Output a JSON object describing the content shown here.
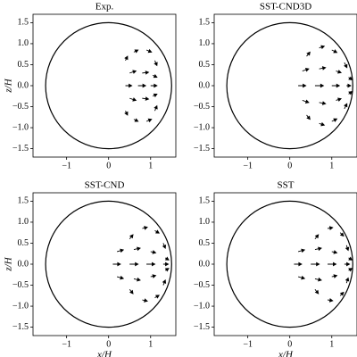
{
  "chart_data": [
    {
      "type": "quiver",
      "title": "Exp.",
      "ylabel": "z/H",
      "xlim": [
        -1.8,
        1.6
      ],
      "ylim": [
        -1.7,
        1.7
      ],
      "circle_radius": 1.5,
      "xticks": [
        {
          "value": -1,
          "label": "−1"
        },
        0,
        1
      ],
      "yticks": [
        1.5,
        {
          "value": 1,
          "label": "1.0"
        },
        0.5,
        {
          "value": 0,
          "label": "0.0"
        },
        {
          "value": -0.5,
          "label": "−0.5"
        },
        {
          "value": -1,
          "label": "−1.0"
        },
        {
          "value": -1.5,
          "label": "−1.5"
        }
      ],
      "color": "#000000",
      "x": [
        0.4,
        0.6,
        0.9,
        1.1,
        0.5,
        0.8,
        1.05,
        0.4,
        0.7,
        1.0,
        0.5,
        0.8,
        1.05,
        0.4,
        0.6,
        0.9,
        1.1
      ],
      "y": [
        0.6,
        0.8,
        0.85,
        0.6,
        0.3,
        0.3,
        0.25,
        0,
        0,
        0,
        -0.3,
        -0.3,
        -0.25,
        -0.6,
        -0.8,
        -0.85,
        -0.6
      ],
      "u": [
        0.05,
        0.1,
        0.12,
        0.05,
        0.15,
        0.15,
        0.1,
        0.15,
        0.18,
        0.15,
        0.15,
        0.15,
        0.1,
        0.05,
        0.1,
        0.12,
        0.05
      ],
      "v": [
        0.1,
        0.05,
        -0.05,
        -0.12,
        0.05,
        0.02,
        -0.05,
        0,
        0,
        0,
        -0.05,
        -0.02,
        0.05,
        -0.1,
        -0.05,
        0.05,
        0.12
      ]
    },
    {
      "type": "quiver",
      "title": "SST-CND3D",
      "xlim": [
        -1.8,
        1.6
      ],
      "ylim": [
        -1.7,
        1.7
      ],
      "circle_radius": 1.5,
      "xticks": [
        {
          "value": -1,
          "label": "−1"
        },
        0,
        1
      ],
      "yticks": [
        1.5,
        {
          "value": 1,
          "label": "1.0"
        },
        0.5,
        {
          "value": 0,
          "label": "0.0"
        },
        {
          "value": -0.5,
          "label": "−0.5"
        },
        {
          "value": -1,
          "label": "−1.0"
        },
        {
          "value": -1.5,
          "label": "−1.5"
        }
      ],
      "color": "#000000",
      "x": [
        0.4,
        0.7,
        1.0,
        1.3,
        0.3,
        0.7,
        1.1,
        1.4,
        0.2,
        0.6,
        1.0,
        1.35,
        0.3,
        0.7,
        1.1,
        1.4,
        0.4,
        0.7,
        1.0,
        1.3
      ],
      "y": [
        0.7,
        0.9,
        0.85,
        0.55,
        0.35,
        0.4,
        0.35,
        0.2,
        0,
        0,
        0,
        0,
        -0.35,
        -0.4,
        -0.35,
        -0.2,
        -0.7,
        -0.9,
        -0.85,
        -0.55
      ],
      "u": [
        0.08,
        0.12,
        0.12,
        0.06,
        0.15,
        0.15,
        0.12,
        0.08,
        0.18,
        0.2,
        0.18,
        0.1,
        0.15,
        0.15,
        0.12,
        0.08,
        0.08,
        0.12,
        0.12,
        0.06
      ],
      "v": [
        0.1,
        0.04,
        -0.06,
        -0.12,
        0.05,
        0.03,
        -0.04,
        -0.06,
        0,
        0,
        0,
        0,
        -0.05,
        -0.03,
        0.04,
        0.06,
        -0.1,
        -0.04,
        0.06,
        0.12
      ]
    },
    {
      "type": "quiver",
      "title": "SST-CND",
      "xlabel": "x/H",
      "ylabel": "z/H",
      "xlim": [
        -1.8,
        1.6
      ],
      "ylim": [
        -1.7,
        1.7
      ],
      "circle_radius": 1.5,
      "xticks": [
        {
          "value": -1,
          "label": "−1"
        },
        0,
        1
      ],
      "yticks": [
        1.5,
        {
          "value": 1,
          "label": "1.0"
        },
        0.5,
        {
          "value": 0,
          "label": "0.0"
        },
        {
          "value": -0.5,
          "label": "−0.5"
        },
        {
          "value": -1,
          "label": "−1.0"
        },
        {
          "value": -1.5,
          "label": "−1.5"
        }
      ],
      "color": "#000000",
      "x": [
        0.5,
        0.8,
        1.1,
        1.3,
        0.2,
        0.6,
        1.0,
        1.35,
        0.1,
        0.5,
        0.9,
        1.3,
        0.2,
        0.6,
        1.0,
        1.35,
        0.5,
        0.8,
        1.1,
        1.3
      ],
      "y": [
        0.6,
        0.85,
        0.8,
        0.5,
        0.3,
        0.35,
        0.3,
        0.15,
        0,
        0,
        0,
        0,
        -0.3,
        -0.35,
        -0.3,
        -0.15,
        -0.6,
        -0.85,
        -0.8,
        -0.5
      ],
      "u": [
        0.08,
        0.12,
        0.1,
        0.05,
        0.15,
        0.15,
        0.12,
        0.08,
        0.18,
        0.2,
        0.2,
        0.12,
        0.15,
        0.15,
        0.12,
        0.08,
        0.08,
        0.12,
        0.1,
        0.05
      ],
      "v": [
        0.1,
        0.03,
        -0.06,
        -0.12,
        0.04,
        0.03,
        -0.03,
        -0.05,
        0,
        0,
        0,
        0,
        -0.04,
        -0.03,
        0.03,
        0.05,
        -0.1,
        -0.03,
        0.06,
        0.12
      ]
    },
    {
      "type": "quiver",
      "title": "SST",
      "xlabel": "x/H",
      "xlim": [
        -1.8,
        1.6
      ],
      "ylim": [
        -1.7,
        1.7
      ],
      "circle_radius": 1.5,
      "xticks": [
        {
          "value": -1,
          "label": "−1"
        },
        0,
        1
      ],
      "yticks": [
        1.5,
        {
          "value": 1,
          "label": "1.0"
        },
        0.5,
        {
          "value": 0,
          "label": "0.0"
        },
        {
          "value": -0.5,
          "label": "−0.5"
        },
        {
          "value": -1,
          "label": "−1.0"
        },
        {
          "value": -1.5,
          "label": "−1.5"
        }
      ],
      "color": "#000000",
      "x": [
        0.6,
        0.9,
        1.2,
        1.35,
        0.2,
        0.6,
        1.0,
        1.4,
        0.1,
        0.5,
        0.9,
        1.3,
        0.2,
        0.6,
        1.0,
        1.4,
        0.6,
        0.9,
        1.2,
        1.35
      ],
      "y": [
        0.6,
        0.85,
        0.75,
        0.45,
        0.3,
        0.35,
        0.3,
        0.15,
        0,
        0,
        0,
        0,
        -0.3,
        -0.35,
        -0.3,
        -0.15,
        -0.6,
        -0.85,
        -0.75,
        -0.45
      ],
      "u": [
        0.08,
        0.12,
        0.08,
        0.04,
        0.15,
        0.15,
        0.12,
        0.08,
        0.18,
        0.2,
        0.2,
        0.12,
        0.15,
        0.15,
        0.12,
        0.08,
        0.08,
        0.12,
        0.08,
        0.04
      ],
      "v": [
        0.1,
        0.02,
        -0.08,
        -0.12,
        0.04,
        0.03,
        -0.03,
        -0.05,
        0,
        0,
        0,
        0,
        -0.04,
        -0.03,
        0.03,
        0.05,
        -0.1,
        -0.02,
        0.08,
        0.12
      ]
    }
  ]
}
